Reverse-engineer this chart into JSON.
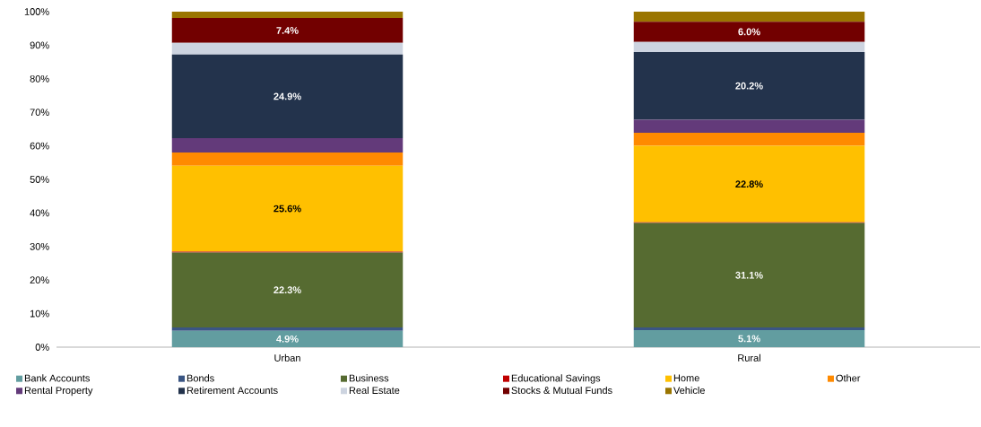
{
  "chart_data": {
    "type": "bar",
    "stacked": true,
    "categories": [
      "Urban",
      "Rural"
    ],
    "ylim": [
      0,
      100
    ],
    "yticks": [
      {
        "value": 0,
        "label": "0%"
      },
      {
        "value": 10,
        "label": "10%"
      },
      {
        "value": 20,
        "label": "20%"
      },
      {
        "value": 30,
        "label": "30%"
      },
      {
        "value": 40,
        "label": "40%"
      },
      {
        "value": 50,
        "label": "50%"
      },
      {
        "value": 60,
        "label": "60%"
      },
      {
        "value": 70,
        "label": "70%"
      },
      {
        "value": 80,
        "label": "80%"
      },
      {
        "value": 90,
        "label": "90%"
      },
      {
        "value": 100,
        "label": "100%"
      }
    ],
    "grid": false,
    "legend": "bottom",
    "series": [
      {
        "name": "Bank Accounts",
        "color": "#629da0",
        "values": [
          4.9,
          5.1
        ],
        "value_labels": [
          "4.9%",
          "5.1%"
        ]
      },
      {
        "name": "Bonds",
        "color": "#3a5583",
        "values": [
          1.0,
          0.8
        ]
      },
      {
        "name": "Business",
        "color": "#566b31",
        "values": [
          22.3,
          31.1
        ],
        "value_labels": [
          "22.3%",
          "31.1%"
        ]
      },
      {
        "name": "Educational Savings",
        "color": "#c00000",
        "values": [
          0.3,
          0.2
        ]
      },
      {
        "name": "Home",
        "color": "#ffc000",
        "values": [
          25.6,
          22.8
        ],
        "value_labels": [
          "25.6%",
          "22.8%"
        ]
      },
      {
        "name": "Other",
        "color": "#ff8a00",
        "values": [
          3.9,
          3.9
        ]
      },
      {
        "name": "Rental Property",
        "color": "#633a7a",
        "values": [
          4.3,
          3.9
        ]
      },
      {
        "name": "Retirement Accounts",
        "color": "#23334c",
        "values": [
          24.9,
          20.2
        ],
        "value_labels": [
          "24.9%",
          "20.2%"
        ]
      },
      {
        "name": "Real Estate",
        "color": "#cdd4e0",
        "values": [
          3.5,
          3.0
        ]
      },
      {
        "name": "Stocks & Mutual Funds",
        "color": "#720000",
        "values": [
          7.4,
          6.0
        ],
        "value_labels": [
          "7.4%",
          "6.0%"
        ]
      },
      {
        "name": "Vehicle",
        "color": "#9a7500",
        "values": [
          1.9,
          3.0
        ]
      }
    ]
  }
}
